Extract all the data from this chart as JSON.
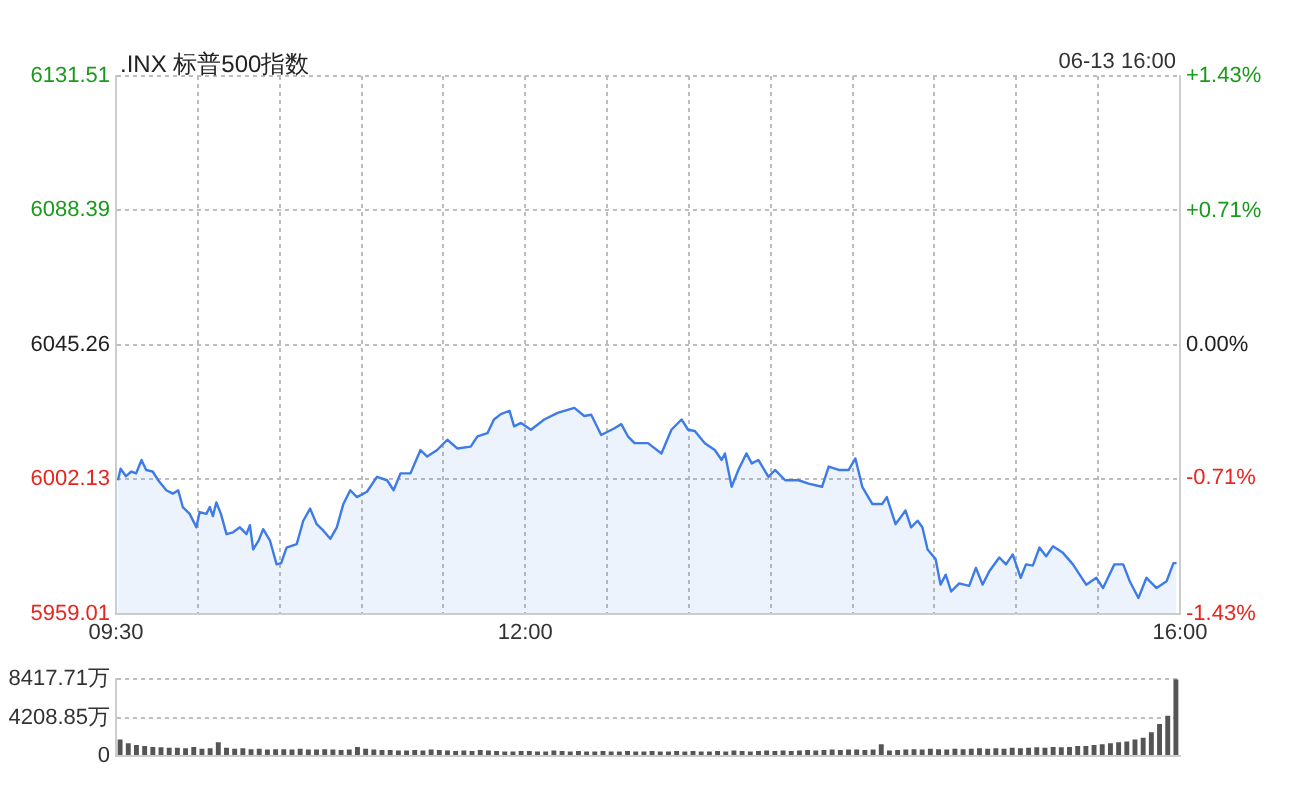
{
  "chart_data": [
    {
      "type": "area",
      "title": ".INX 标普500指数",
      "annotations": [
        "06-13 16:00"
      ],
      "color": "#3d7be6",
      "x": [
        9.512,
        9.528,
        9.561,
        9.594,
        9.623,
        9.656,
        9.684,
        9.724,
        9.758,
        9.807,
        9.847,
        9.88,
        9.908,
        9.95,
        9.991,
        10.011,
        10.052,
        10.073,
        10.092,
        10.113,
        10.141,
        10.175,
        10.215,
        10.257,
        10.297,
        10.318,
        10.338,
        10.371,
        10.399,
        10.441,
        10.481,
        10.509,
        10.542,
        10.604,
        10.644,
        10.686,
        10.726,
        10.767,
        10.809,
        10.849,
        10.889,
        10.931,
        10.972,
        11.033,
        11.094,
        11.156,
        11.196,
        11.238,
        11.299,
        11.36,
        11.401,
        11.462,
        11.524,
        11.585,
        11.667,
        11.708,
        11.769,
        11.809,
        11.851,
        11.904,
        11.932,
        11.974,
        12.035,
        12.116,
        12.198,
        12.3,
        12.361,
        12.403,
        12.464,
        12.545,
        12.587,
        12.627,
        12.668,
        12.75,
        12.832,
        12.893,
        12.955,
        12.995,
        13.036,
        13.097,
        13.158,
        13.2,
        13.22,
        13.261,
        13.302,
        13.351,
        13.384,
        13.424,
        13.486,
        13.526,
        13.588,
        13.67,
        13.731,
        13.813,
        13.854,
        13.915,
        13.976,
        14.017,
        14.059,
        14.12,
        14.181,
        14.209,
        14.262,
        14.323,
        14.357,
        14.397,
        14.426,
        14.458,
        14.507,
        14.537,
        14.569,
        14.602,
        14.651,
        14.712,
        14.753,
        14.794,
        14.835,
        14.896,
        14.937,
        14.978,
        15.027,
        15.059,
        15.101,
        15.141,
        15.182,
        15.224,
        15.285,
        15.346,
        15.427,
        15.489,
        15.53,
        15.599,
        15.653,
        15.693,
        15.746,
        15.795,
        15.857,
        15.918,
        15.96,
        15.979
      ],
      "values": [
        6001.8,
        6005.5,
        6003.1,
        6004.6,
        6004.0,
        6008.3,
        6005.1,
        6004.6,
        6001.8,
        5998.6,
        5997.5,
        5998.6,
        5993.2,
        5991.0,
        5986.7,
        5991.6,
        5991.0,
        5993.2,
        5990.3,
        5994.7,
        5991.0,
        5984.5,
        5985.1,
        5986.7,
        5984.5,
        5987.4,
        5979.6,
        5982.4,
        5986.1,
        5982.4,
        5974.8,
        5975.2,
        5980.2,
        5981.3,
        5988.8,
        5992.7,
        5987.7,
        5985.6,
        5983.0,
        5986.7,
        5994.2,
        5998.6,
        5996.4,
        5998.1,
        6002.9,
        6001.8,
        5998.6,
        6004.0,
        6004.0,
        6011.5,
        6009.4,
        6011.5,
        6014.8,
        6012.0,
        6012.6,
        6015.9,
        6016.9,
        6021.3,
        6023.0,
        6024.1,
        6019.1,
        6020.2,
        6018.0,
        6021.3,
        6023.4,
        6025.0,
        6022.4,
        6022.8,
        6016.3,
        6018.5,
        6019.8,
        6015.9,
        6013.7,
        6013.7,
        6010.4,
        6018.0,
        6021.3,
        6018.0,
        6017.6,
        6013.7,
        6011.5,
        6008.3,
        6010.4,
        5999.7,
        6005.1,
        6010.4,
        6007.2,
        6008.3,
        6002.9,
        6005.1,
        6001.8,
        6001.8,
        6000.7,
        5999.7,
        6006.2,
        6005.1,
        6005.1,
        6008.8,
        5999.7,
        5994.2,
        5994.2,
        5996.4,
        5987.7,
        5992.1,
        5986.7,
        5988.8,
        5986.7,
        5979.6,
        5976.5,
        5968.3,
        5971.5,
        5966.1,
        5968.7,
        5967.9,
        5973.7,
        5968.3,
        5972.6,
        5977.0,
        5974.8,
        5978.0,
        5970.5,
        5974.8,
        5974.4,
        5980.2,
        5977.4,
        5980.6,
        5978.5,
        5974.8,
        5968.3,
        5970.5,
        5967.2,
        5974.8,
        5974.8,
        5969.4,
        5964.0,
        5970.5,
        5967.2,
        5969.4,
        5975.2,
        5975.2
      ],
      "xlim": [
        9.5,
        16
      ],
      "xticks": [
        {
          "value": 9.5,
          "label": "09:30"
        },
        {
          "value": 10,
          "label": null
        },
        {
          "value": 10.5,
          "label": null
        },
        {
          "value": 11,
          "label": null
        },
        {
          "value": 11.5,
          "label": null
        },
        {
          "value": 12,
          "label": "12:00"
        },
        {
          "value": 12.5,
          "label": null
        },
        {
          "value": 13,
          "label": null
        },
        {
          "value": 13.5,
          "label": null
        },
        {
          "value": 14,
          "label": null
        },
        {
          "value": 14.5,
          "label": null
        },
        {
          "value": 15,
          "label": null
        },
        {
          "value": 15.5,
          "label": null
        },
        {
          "value": 16,
          "label": "16:00"
        }
      ],
      "ylim": [
        5959.01,
        6131.51
      ],
      "yticks": [
        5959.01,
        6002.13,
        6045.26,
        6088.39,
        6131.51
      ],
      "y2lim": [
        -1.43,
        1.43
      ],
      "y2ticks": [
        {
          "value": -1.43,
          "label": "-1.43%"
        },
        {
          "value": -0.71,
          "label": "-0.71%"
        },
        {
          "value": 0,
          "label": "0.00%"
        },
        {
          "value": 0.71,
          "label": "+0.71%"
        },
        {
          "value": 1.43,
          "label": "+1.43%"
        }
      ],
      "grid": true
    },
    {
      "type": "bar",
      "color": "#555555",
      "tick_labels": "y",
      "grid": "y",
      "ylim": [
        0,
        8417.71
      ],
      "yticks": [
        0,
        {
          "value": 4208.85,
          "label": "4208.85万"
        },
        {
          "value": 8417.71,
          "label": "8417.71万"
        }
      ],
      "categories": [
        null,
        null,
        null,
        null,
        null,
        null,
        null,
        null,
        null,
        null,
        null,
        null,
        null,
        null,
        null,
        null,
        null,
        null,
        null,
        null,
        null,
        null,
        null,
        null,
        null,
        null,
        null,
        null,
        null,
        null,
        null,
        null,
        null,
        null,
        null,
        null,
        null,
        null,
        null,
        null,
        null,
        null,
        null,
        null,
        null,
        null,
        null,
        null,
        null,
        null,
        null,
        null,
        null,
        null,
        null,
        null,
        null,
        null,
        null,
        null,
        null,
        null,
        null,
        null,
        null,
        null,
        null,
        null,
        null,
        null,
        null,
        null,
        null,
        null,
        null,
        null,
        null,
        null,
        null,
        null,
        null,
        null,
        null,
        null,
        null,
        null,
        null,
        null,
        null,
        null,
        null,
        null,
        null,
        null,
        null,
        null,
        null,
        null,
        null,
        null,
        null,
        null,
        null,
        null,
        null,
        null,
        null,
        null,
        null,
        null,
        null,
        null,
        null,
        null,
        null,
        null,
        null,
        null,
        null,
        null,
        null,
        null,
        null,
        null,
        null,
        null,
        null,
        null,
        null,
        null
      ],
      "values": [
        1800,
        1400,
        1200,
        1100,
        1000,
        950,
        900,
        900,
        850,
        1000,
        800,
        850,
        1500,
        900,
        800,
        850,
        750,
        800,
        700,
        750,
        750,
        700,
        800,
        700,
        700,
        750,
        700,
        650,
        700,
        1000,
        800,
        700,
        650,
        650,
        600,
        600,
        650,
        600,
        700,
        650,
        600,
        550,
        600,
        550,
        650,
        600,
        550,
        500,
        500,
        550,
        550,
        500,
        500,
        600,
        550,
        500,
        550,
        500,
        500,
        550,
        500,
        500,
        550,
        500,
        500,
        550,
        500,
        500,
        550,
        500,
        550,
        500,
        500,
        550,
        500,
        600,
        550,
        500,
        550,
        600,
        550,
        600,
        550,
        600,
        650,
        600,
        650,
        700,
        650,
        700,
        700,
        650,
        700,
        1300,
        600,
        650,
        700,
        750,
        700,
        800,
        750,
        700,
        800,
        750,
        800,
        850,
        800,
        850,
        800,
        900,
        850,
        900,
        950,
        900,
        1000,
        950,
        1000,
        1100,
        1100,
        1200,
        1300,
        1400,
        1500,
        1600,
        1800,
        2000,
        2600,
        3500,
        4400,
        8417.71
      ]
    }
  ]
}
